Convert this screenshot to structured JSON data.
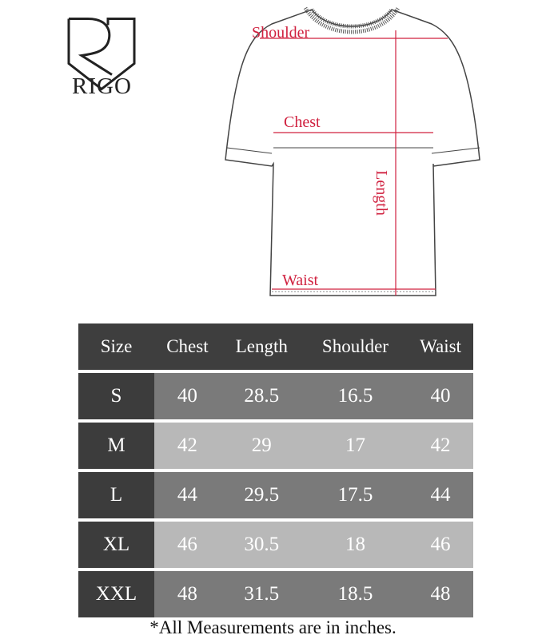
{
  "brand": {
    "name": "RIGO"
  },
  "diagram": {
    "labels": {
      "shoulder": "Shoulder",
      "chest": "Chest",
      "length": "Length",
      "waist": "Waist"
    },
    "accent_color": "#d0213f"
  },
  "table": {
    "headers": [
      "Size",
      "Chest",
      "Length",
      "Shoulder",
      "Waist"
    ],
    "rows": [
      {
        "size": "S",
        "chest": "40",
        "length": "28.5",
        "shoulder": "16.5",
        "waist": "40"
      },
      {
        "size": "M",
        "chest": "42",
        "length": "29",
        "shoulder": "17",
        "waist": "42"
      },
      {
        "size": "L",
        "chest": "44",
        "length": "29.5",
        "shoulder": "17.5",
        "waist": "44"
      },
      {
        "size": "XL",
        "chest": "46",
        "length": "30.5",
        "shoulder": "18",
        "waist": "46"
      },
      {
        "size": "XXL",
        "chest": "48",
        "length": "31.5",
        "shoulder": "18.5",
        "waist": "48"
      }
    ]
  },
  "note": "*All Measurements are in inches."
}
